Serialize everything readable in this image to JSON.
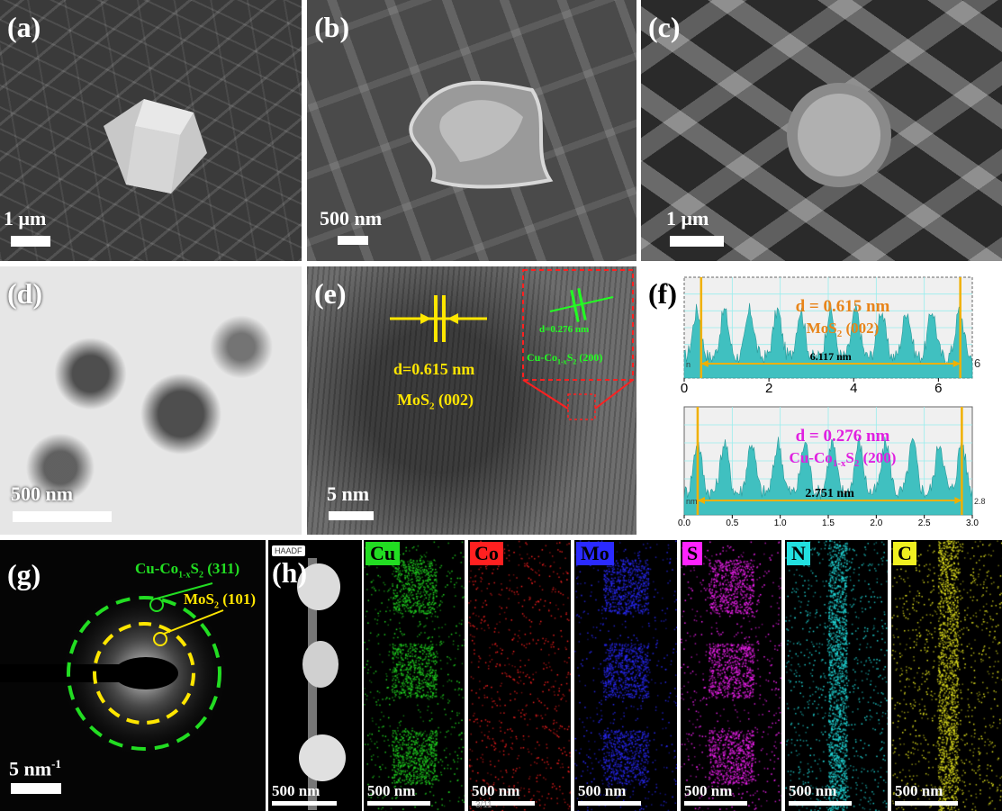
{
  "panels": {
    "a": {
      "label": "(a)",
      "scale": "1 μm"
    },
    "b": {
      "label": "(b)",
      "scale": "500 nm"
    },
    "c": {
      "label": "(c)",
      "scale": "1 μm"
    },
    "d": {
      "label": "(d)",
      "scale": "500 nm"
    },
    "e": {
      "label": "(e)",
      "scale": "5 nm",
      "d_spacing": "d=0.615 nm",
      "phase": "MoS",
      "phase_sub": "2",
      "plane": " (002)",
      "inset_d": "d=0.276 nm",
      "inset_phase": "Cu-Co",
      "inset_sub": "1-x",
      "inset_s": "S",
      "inset_s_sub": "2",
      "inset_plane": " (200)"
    },
    "f": {
      "label": "(f)"
    },
    "g": {
      "label": "(g)",
      "scale": "5 nm",
      "scale_sup": "-1",
      "ring1_phase": "Cu-Co",
      "ring1_sub": "1-x",
      "ring1_s": "S",
      "ring1_s_sub": "2",
      "ring1_plane": " (311)",
      "ring2_phase": "MoS",
      "ring2_sub": "2",
      "ring2_plane": " (101)"
    },
    "h": {
      "label": "(h)",
      "haadf": "HAADF",
      "scale": "500 nm"
    }
  },
  "eds_maps": [
    {
      "element": "Cu",
      "color": "#22dd22",
      "tag_text": "#000000",
      "scale": "500 nm"
    },
    {
      "element": "Co",
      "color": "#ff2020",
      "tag_text": "#000000",
      "scale": "500 nm"
    },
    {
      "element": "Mo",
      "color": "#2a2aff",
      "tag_text": "#000000",
      "scale": "500 nm"
    },
    {
      "element": "S",
      "color": "#ff22ff",
      "tag_text": "#000000",
      "scale": "500 nm"
    },
    {
      "element": "N",
      "color": "#22e0e0",
      "tag_text": "#000000",
      "scale": "500 nm"
    },
    {
      "element": "C",
      "color": "#f0f020",
      "tag_text": "#000000",
      "scale": "500 nm"
    }
  ],
  "footer_stamp": "3/11",
  "chart_data": [
    {
      "type": "area",
      "color": "#40c0c0",
      "annotation_d": "d = 0.615 nm",
      "annotation_phase": "MoS",
      "annotation_sub": "2",
      "annotation_plane": " (002)",
      "annotation_color": "#e8841a",
      "span_label": "6.117 nm",
      "left_edge_label": "n",
      "right_edge_label": "6",
      "xlim": [
        0,
        6.8
      ],
      "xticks": [
        0,
        2,
        4,
        6
      ],
      "xtick_labels": [
        "0",
        "2",
        "4",
        "6"
      ],
      "span": [
        0.4,
        6.517
      ],
      "peaks_x": [
        0.3,
        0.95,
        1.55,
        2.2,
        2.75,
        3.45,
        4.05,
        4.65,
        5.25,
        5.85,
        6.5
      ],
      "grid": true
    },
    {
      "type": "area",
      "color": "#40c0c0",
      "annotation_d": "d = 0.276 nm",
      "annotation_phase": "Cu-Co",
      "annotation_sub": "1-x",
      "annotation_s": "S",
      "annotation_s_sub": "2",
      "annotation_plane": " (200)",
      "annotation_color": "#e020e0",
      "span_label": "2.751 nm",
      "left_edge_label": "nm",
      "right_edge_label": "2.8",
      "xlim": [
        0,
        3.0
      ],
      "xticks": [
        0.0,
        0.5,
        1.0,
        1.5,
        2.0,
        2.5,
        3.0
      ],
      "xtick_labels": [
        "0.0",
        "0.5",
        "1.0",
        "1.5",
        "2.0",
        "2.5",
        "3.0"
      ],
      "span": [
        0.14,
        2.891
      ],
      "peaks_x": [
        0.14,
        0.42,
        0.7,
        0.98,
        1.26,
        1.54,
        1.82,
        2.1,
        2.38,
        2.66,
        2.89
      ],
      "grid": true
    }
  ]
}
